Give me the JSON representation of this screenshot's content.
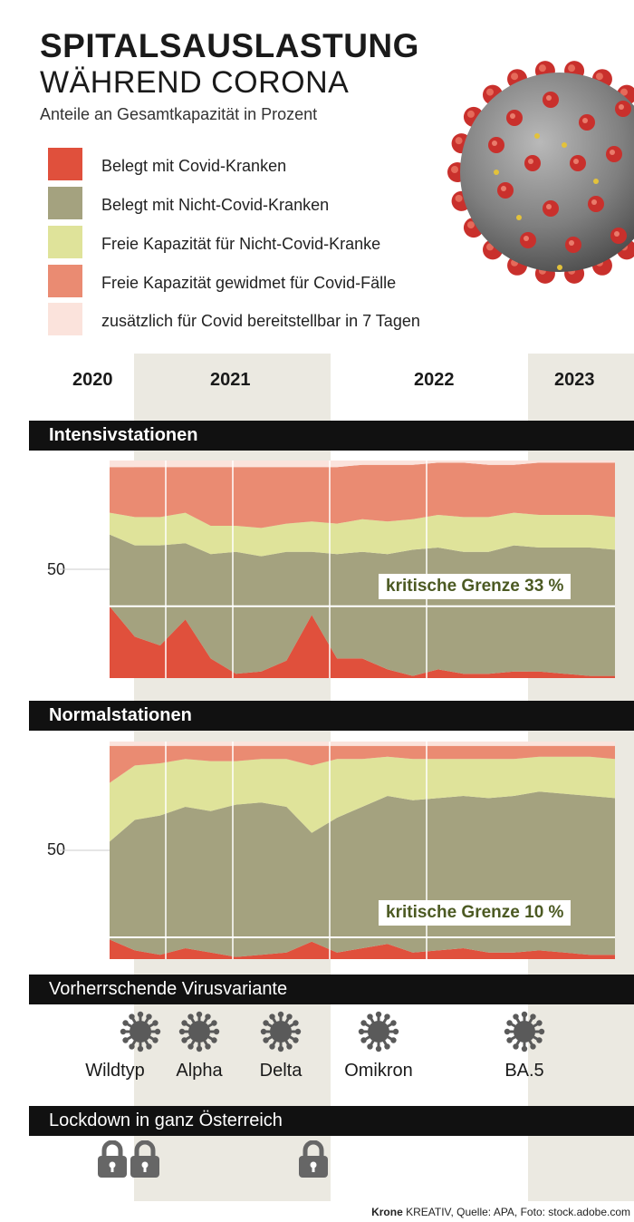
{
  "header": {
    "title_line1": "SPITALSAUSLASTUNG",
    "title_line2": "WÄHREND CORONA",
    "subtitle": "Anteile an Gesamtkapazität in Prozent"
  },
  "legend": [
    {
      "label": "Belegt mit Covid-Kranken",
      "color": "#e0503c"
    },
    {
      "label": "Belegt mit Nicht-Covid-Kranken",
      "color": "#a4a27f"
    },
    {
      "label": "Freie Kapazität für Nicht-Covid-Kranke",
      "color": "#dfe39a"
    },
    {
      "label": "Freie Kapazität gewidmet für Covid-Fälle",
      "color": "#ea8b72"
    },
    {
      "label": "zusätzlich für Covid bereitstellbar in 7 Tagen",
      "color": "#fbe3dc"
    }
  ],
  "years": [
    "2020",
    "2021",
    "2022",
    "2023"
  ],
  "sections": {
    "icu_title": "Intensivstationen",
    "normal_title": "Normalstationen",
    "variants_title": "Vorherrschende Virusvariante",
    "lockdown_title": "Lockdown in ganz Österreich"
  },
  "variants": [
    "Wildtyp",
    "Alpha",
    "Delta",
    "Omikron",
    "BA.5"
  ],
  "credit": {
    "brand": "Krone",
    "rest": " KREATIV, Quelle: APA, Foto: stock.adobe.com"
  },
  "chart_data": [
    {
      "type": "area",
      "title": "Intensivstationen",
      "stacking": "stacked-percent",
      "ylim": [
        0,
        100
      ],
      "yticks": [
        50
      ],
      "ytick_labels": [
        "50"
      ],
      "annotation": "kritische Grenze 33 %",
      "threshold": 33,
      "x": [
        0,
        0.05,
        0.1,
        0.15,
        0.2,
        0.25,
        0.3,
        0.35,
        0.4,
        0.45,
        0.5,
        0.55,
        0.6,
        0.65,
        0.7,
        0.75,
        0.8,
        0.85,
        0.9,
        0.95,
        1
      ],
      "series": [
        {
          "name": "Belegt mit Covid-Kranken",
          "values": [
            33,
            19,
            15,
            27,
            9,
            2,
            3,
            8,
            29,
            9,
            9,
            4,
            1,
            4,
            2,
            2,
            3,
            3,
            2,
            1,
            1
          ]
        },
        {
          "name": "Belegt mit Nicht-Covid-Kranken",
          "values": [
            33,
            42,
            46,
            35,
            48,
            56,
            53,
            50,
            29,
            48,
            49,
            53,
            58,
            56,
            56,
            56,
            58,
            57,
            58,
            59,
            58
          ]
        },
        {
          "name": "Freie Kapazität für Nicht-Covid-Kranke",
          "values": [
            10,
            13,
            13,
            14,
            13,
            12,
            13,
            13,
            14,
            14,
            15,
            15,
            14,
            15,
            16,
            16,
            15,
            15,
            15,
            15,
            15
          ]
        },
        {
          "name": "Freie Kapazität gewidmet für Covid-Fälle",
          "values": [
            21,
            23,
            23,
            21,
            27,
            27,
            28,
            26,
            25,
            26,
            25,
            26,
            25,
            24,
            25,
            24,
            22,
            24,
            24,
            24,
            25
          ]
        },
        {
          "name": "zusätzlich für Covid bereitstellbar in 7 Tagen",
          "values": [
            3,
            3,
            3,
            3,
            3,
            3,
            3,
            3,
            3,
            3,
            2,
            2,
            2,
            1,
            1,
            2,
            2,
            1,
            1,
            1,
            1
          ]
        }
      ]
    },
    {
      "type": "area",
      "title": "Normalstationen",
      "stacking": "stacked-percent",
      "ylim": [
        0,
        100
      ],
      "yticks": [
        50
      ],
      "ytick_labels": [
        "50"
      ],
      "annotation": "kritische Grenze 10 %",
      "threshold": 10,
      "x": [
        0,
        0.05,
        0.1,
        0.15,
        0.2,
        0.25,
        0.3,
        0.35,
        0.4,
        0.45,
        0.5,
        0.55,
        0.6,
        0.65,
        0.7,
        0.75,
        0.8,
        0.85,
        0.9,
        0.95,
        1
      ],
      "series": [
        {
          "name": "Belegt mit Covid-Kranken",
          "values": [
            9,
            4,
            2,
            5,
            3,
            1,
            2,
            3,
            8,
            3,
            5,
            7,
            3,
            4,
            5,
            3,
            3,
            4,
            3,
            2,
            2
          ]
        },
        {
          "name": "Belegt mit Nicht-Covid-Kranken",
          "values": [
            45,
            60,
            64,
            65,
            65,
            70,
            70,
            67,
            50,
            62,
            65,
            68,
            70,
            70,
            70,
            71,
            72,
            73,
            73,
            73,
            72
          ]
        },
        {
          "name": "Freie Kapazität für Nicht-Covid-Kranke",
          "values": [
            27,
            25,
            24,
            22,
            23,
            20,
            20,
            22,
            31,
            27,
            22,
            18,
            19,
            18,
            17,
            18,
            17,
            16,
            17,
            18,
            18
          ]
        },
        {
          "name": "Freie Kapazität gewidmet für Covid-Fälle",
          "values": [
            17,
            9,
            8,
            6,
            7,
            7,
            6,
            6,
            9,
            6,
            6,
            5,
            6,
            6,
            6,
            6,
            6,
            5,
            5,
            5,
            6
          ]
        },
        {
          "name": "zusätzlich für Covid bereitstellbar in 7 Tagen",
          "values": [
            2,
            2,
            2,
            2,
            2,
            2,
            2,
            2,
            2,
            2,
            2,
            2,
            2,
            2,
            2,
            2,
            2,
            2,
            2,
            2,
            2
          ]
        }
      ]
    }
  ]
}
